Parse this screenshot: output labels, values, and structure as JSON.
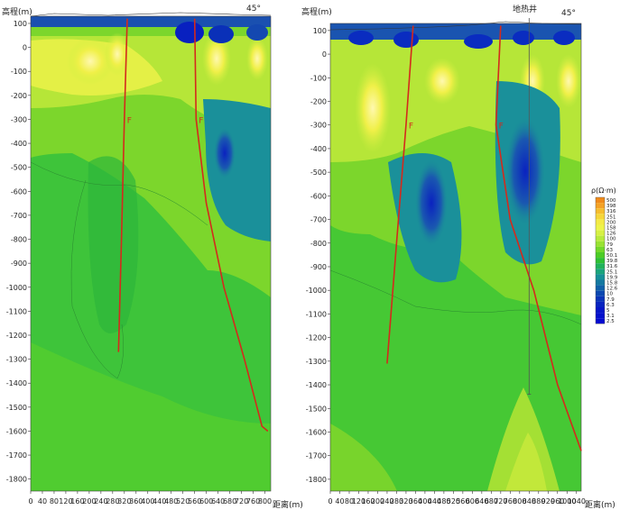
{
  "chart_data": [
    {
      "type": "heatmap",
      "ylabel": "高程(m)",
      "xlabel": "距离(m)",
      "corner_label": "45°",
      "x_ticks": [
        0,
        40,
        80,
        120,
        160,
        200,
        240,
        280,
        320,
        360,
        400,
        440,
        480,
        520,
        560,
        600,
        640,
        680,
        720,
        760,
        800
      ],
      "y_ticks": [
        100,
        0,
        -100,
        -200,
        -300,
        -400,
        -500,
        -600,
        -700,
        -800,
        -900,
        -1000,
        -1100,
        -1200,
        -1300,
        -1400,
        -1500,
        -1600,
        -1700,
        -1800
      ],
      "xlim": [
        0,
        820
      ],
      "ylim": [
        -1850,
        130
      ],
      "fault_label": "F",
      "faults": [
        {
          "points": [
            [
              330,
              120
            ],
            [
              320,
              -300
            ],
            [
              310,
              -800
            ],
            [
              300,
              -1270
            ]
          ]
        },
        {
          "points": [
            [
              560,
              120
            ],
            [
              565,
              -300
            ],
            [
              600,
              -650
            ],
            [
              660,
              -1000
            ],
            [
              730,
              -1300
            ],
            [
              790,
              -1580
            ],
            [
              810,
              -1600
            ]
          ]
        }
      ]
    },
    {
      "type": "heatmap",
      "ylabel": "高程(m)",
      "xlabel": "距离(m)",
      "corner_label": "45°",
      "well_label": "地热井",
      "x_ticks": [
        0,
        40,
        80,
        120,
        160,
        200,
        240,
        280,
        320,
        360,
        400,
        440,
        480,
        520,
        560,
        600,
        640,
        680,
        720,
        760,
        800,
        840,
        880,
        920,
        960,
        1000,
        1040
      ],
      "y_ticks": [
        100,
        0,
        -100,
        -200,
        -300,
        -400,
        -500,
        -600,
        -700,
        -800,
        -900,
        -1000,
        -1100,
        -1200,
        -1300,
        -1400,
        -1500,
        -1600,
        -1700,
        -1800
      ],
      "xlim": [
        0,
        1060
      ],
      "ylim": [
        -1850,
        130
      ],
      "fault_label": "F",
      "faults": [
        {
          "points": [
            [
              350,
              120
            ],
            [
              320,
              -300
            ],
            [
              280,
              -800
            ],
            [
              240,
              -1310
            ]
          ]
        },
        {
          "points": [
            [
              720,
              120
            ],
            [
              700,
              -300
            ],
            [
              760,
              -700
            ],
            [
              860,
              -1000
            ],
            [
              960,
              -1400
            ],
            [
              1060,
              -1680
            ]
          ]
        }
      ],
      "well": {
        "x": 840,
        "bottom": -1440
      }
    }
  ],
  "legend": {
    "title": "ρ(Ω·m)",
    "labels": [
      "500",
      "398",
      "316",
      "251",
      "200",
      "158",
      "126",
      "100",
      "79",
      "63",
      "50.1",
      "39.8",
      "31.6",
      "25.1",
      "19.9",
      "15.8",
      "12.6",
      "10",
      "7.9",
      "6.3",
      "5",
      "3.1",
      "2.5"
    ],
    "colors": [
      "#f08a1a",
      "#f4a226",
      "#f6bd2e",
      "#f6d63a",
      "#f4ea46",
      "#eef44a",
      "#d6f044",
      "#b8ea3c",
      "#98e232",
      "#72d82a",
      "#4ccc26",
      "#2ec034",
      "#20b25a",
      "#1aa47c",
      "#169098",
      "#1478a0",
      "#1060a8",
      "#0c48b0",
      "#0a34b8",
      "#0824c0",
      "#0616c8",
      "#0410cc",
      "#020ad0"
    ]
  }
}
